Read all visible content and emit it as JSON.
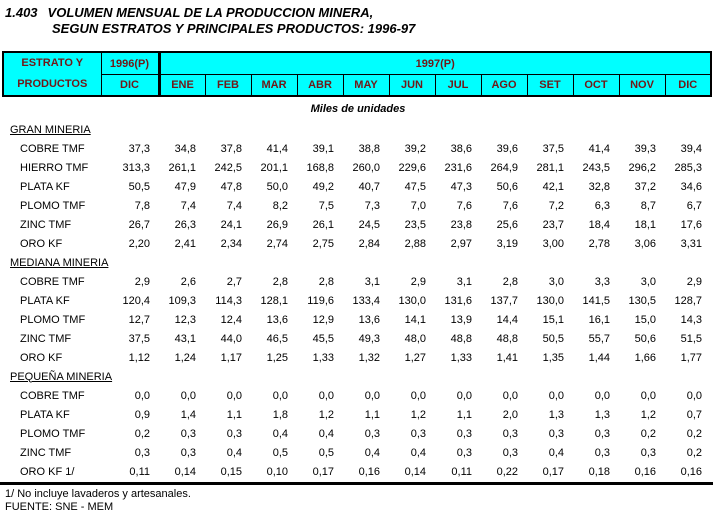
{
  "title": {
    "index": "1.403",
    "line1": "VOLUMEN MENSUAL DE LA PRODUCCION MINERA,",
    "line2": "SEGUN ESTRATOS Y PRINCIPALES PRODUCTOS: 1996-97"
  },
  "header": {
    "col1_line1": "ESTRATO Y",
    "col1_line2": "PRODUCTOS",
    "year1996": "1996(P)",
    "year1996_sub": "DIC",
    "year1997": "1997(P)",
    "months": [
      "ENE",
      "FEB",
      "MAR",
      "ABR",
      "MAY",
      "JUN",
      "JUL",
      "AGO",
      "SET",
      "OCT",
      "NOV",
      "DIC"
    ]
  },
  "units_caption": "Miles de unidades",
  "sections": [
    {
      "name": "GRAN MINERIA",
      "rows": [
        {
          "label": "COBRE TMF",
          "values": [
            "37,3",
            "34,8",
            "37,8",
            "41,4",
            "39,1",
            "38,8",
            "39,2",
            "38,6",
            "39,6",
            "37,5",
            "41,4",
            "39,3",
            "39,4"
          ]
        },
        {
          "label": "HIERRO TMF",
          "values": [
            "313,3",
            "261,1",
            "242,5",
            "201,1",
            "168,8",
            "260,0",
            "229,6",
            "231,6",
            "264,9",
            "281,1",
            "243,5",
            "296,2",
            "285,3"
          ]
        },
        {
          "label": "PLATA KF",
          "values": [
            "50,5",
            "47,9",
            "47,8",
            "50,0",
            "49,2",
            "40,7",
            "47,5",
            "47,3",
            "50,6",
            "42,1",
            "32,8",
            "37,2",
            "34,6"
          ]
        },
        {
          "label": "PLOMO TMF",
          "values": [
            "7,8",
            "7,4",
            "7,4",
            "8,2",
            "7,5",
            "7,3",
            "7,0",
            "7,6",
            "7,6",
            "7,2",
            "6,3",
            "8,7",
            "6,7"
          ]
        },
        {
          "label": "ZINC TMF",
          "values": [
            "26,7",
            "26,3",
            "24,1",
            "26,9",
            "26,1",
            "24,5",
            "23,5",
            "23,8",
            "25,6",
            "23,7",
            "18,4",
            "18,1",
            "17,6"
          ]
        },
        {
          "label": "ORO KF",
          "values": [
            "2,20",
            "2,41",
            "2,34",
            "2,74",
            "2,75",
            "2,84",
            "2,88",
            "2,97",
            "3,19",
            "3,00",
            "2,78",
            "3,06",
            "3,31"
          ]
        }
      ]
    },
    {
      "name": "MEDIANA MINERIA",
      "rows": [
        {
          "label": "COBRE TMF",
          "values": [
            "2,9",
            "2,6",
            "2,7",
            "2,8",
            "2,8",
            "3,1",
            "2,9",
            "3,1",
            "2,8",
            "3,0",
            "3,3",
            "3,0",
            "2,9"
          ]
        },
        {
          "label": "PLATA KF",
          "values": [
            "120,4",
            "109,3",
            "114,3",
            "128,1",
            "119,6",
            "133,4",
            "130,0",
            "131,6",
            "137,7",
            "130,0",
            "141,5",
            "130,5",
            "128,7"
          ]
        },
        {
          "label": "PLOMO TMF",
          "values": [
            "12,7",
            "12,3",
            "12,4",
            "13,6",
            "12,9",
            "13,6",
            "14,1",
            "13,9",
            "14,4",
            "15,1",
            "16,1",
            "15,0",
            "14,3"
          ]
        },
        {
          "label": "ZINC TMF",
          "values": [
            "37,5",
            "43,1",
            "44,0",
            "46,5",
            "45,5",
            "49,3",
            "48,0",
            "48,8",
            "48,8",
            "50,5",
            "55,7",
            "50,6",
            "51,5"
          ]
        },
        {
          "label": "ORO KF",
          "values": [
            "1,12",
            "1,24",
            "1,17",
            "1,25",
            "1,33",
            "1,32",
            "1,27",
            "1,33",
            "1,41",
            "1,35",
            "1,44",
            "1,66",
            "1,77"
          ]
        }
      ]
    },
    {
      "name": "PEQUEÑA MINERIA",
      "rows": [
        {
          "label": "COBRE TMF",
          "values": [
            "0,0",
            "0,0",
            "0,0",
            "0,0",
            "0,0",
            "0,0",
            "0,0",
            "0,0",
            "0,0",
            "0,0",
            "0,0",
            "0,0",
            "0,0"
          ]
        },
        {
          "label": "PLATA KF",
          "values": [
            "0,9",
            "1,4",
            "1,1",
            "1,8",
            "1,2",
            "1,1",
            "1,2",
            "1,1",
            "2,0",
            "1,3",
            "1,3",
            "1,2",
            "0,7"
          ]
        },
        {
          "label": "PLOMO TMF",
          "values": [
            "0,2",
            "0,3",
            "0,3",
            "0,4",
            "0,4",
            "0,3",
            "0,3",
            "0,3",
            "0,3",
            "0,3",
            "0,3",
            "0,2",
            "0,2"
          ]
        },
        {
          "label": "ZINC TMF",
          "values": [
            "0,3",
            "0,3",
            "0,4",
            "0,5",
            "0,5",
            "0,4",
            "0,4",
            "0,3",
            "0,3",
            "0,4",
            "0,3",
            "0,3",
            "0,2"
          ]
        },
        {
          "label": "ORO KF 1/",
          "values": [
            "0,11",
            "0,14",
            "0,15",
            "0,10",
            "0,17",
            "0,16",
            "0,14",
            "0,11",
            "0,22",
            "0,17",
            "0,18",
            "0,16",
            "0,16"
          ]
        }
      ]
    }
  ],
  "footnotes": {
    "note1": "1/ No incluye lavaderos y artesanales.",
    "source": "FUENTE: SNE - MEM"
  },
  "colors": {
    "header_bg": "#00FFFF",
    "header_text": "#701818",
    "border": "#000000",
    "body_bg": "#FFFFFF"
  }
}
